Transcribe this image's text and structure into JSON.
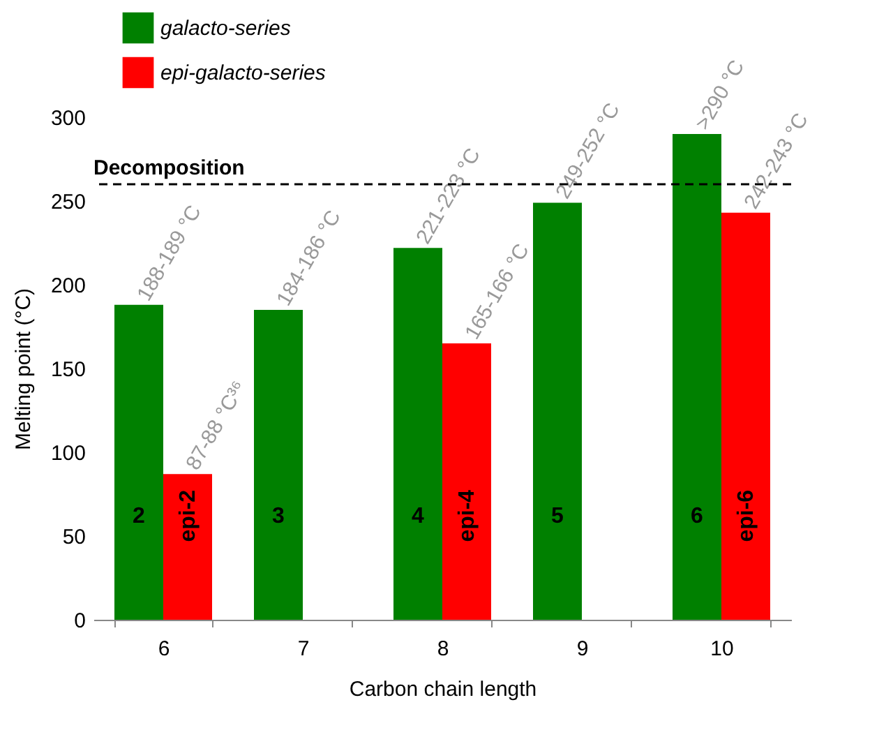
{
  "chart_data": {
    "type": "bar",
    "xlabel": "Carbon chain length",
    "ylabel": "Melting point (°C)",
    "categories": [
      "6",
      "7",
      "8",
      "9",
      "10"
    ],
    "series": [
      {
        "name": "galacto-series",
        "color": "#008000",
        "values": [
          188,
          185,
          222,
          249,
          290
        ],
        "value_labels": [
          "188-189 °C",
          "184-186 °C",
          "221-223 °C",
          "249-252 °C",
          ">290 °C"
        ]
      },
      {
        "name": "epi-galacto-series",
        "color": "#ff0000",
        "values": [
          87,
          null,
          165,
          null,
          243
        ],
        "value_labels": [
          "87-88 °C³⁶",
          null,
          "165-166 °C",
          null,
          "242-243 °C"
        ]
      }
    ],
    "ylim": [
      0,
      300
    ],
    "yticks": [
      0,
      50,
      100,
      150,
      200,
      250,
      300
    ],
    "grid": false,
    "legend": "top left",
    "ref_lines": [
      {
        "axis": "y",
        "value": 260,
        "label": "Decomposition",
        "color": "#000000",
        "line_style": "dashed"
      }
    ],
    "annotations": [
      {
        "text": "2",
        "x": "6",
        "y": 62
      },
      {
        "text": "epi-2",
        "x": "6",
        "y": 62
      },
      {
        "text": "3",
        "x": "7",
        "y": 62
      },
      {
        "text": "4",
        "x": "8",
        "y": 62
      },
      {
        "text": "epi-4",
        "x": "8",
        "y": 62
      },
      {
        "text": "5",
        "x": "9",
        "y": 62
      },
      {
        "text": "6",
        "x": "10",
        "y": 62
      },
      {
        "text": "epi-6",
        "x": "10",
        "y": 62
      }
    ]
  }
}
